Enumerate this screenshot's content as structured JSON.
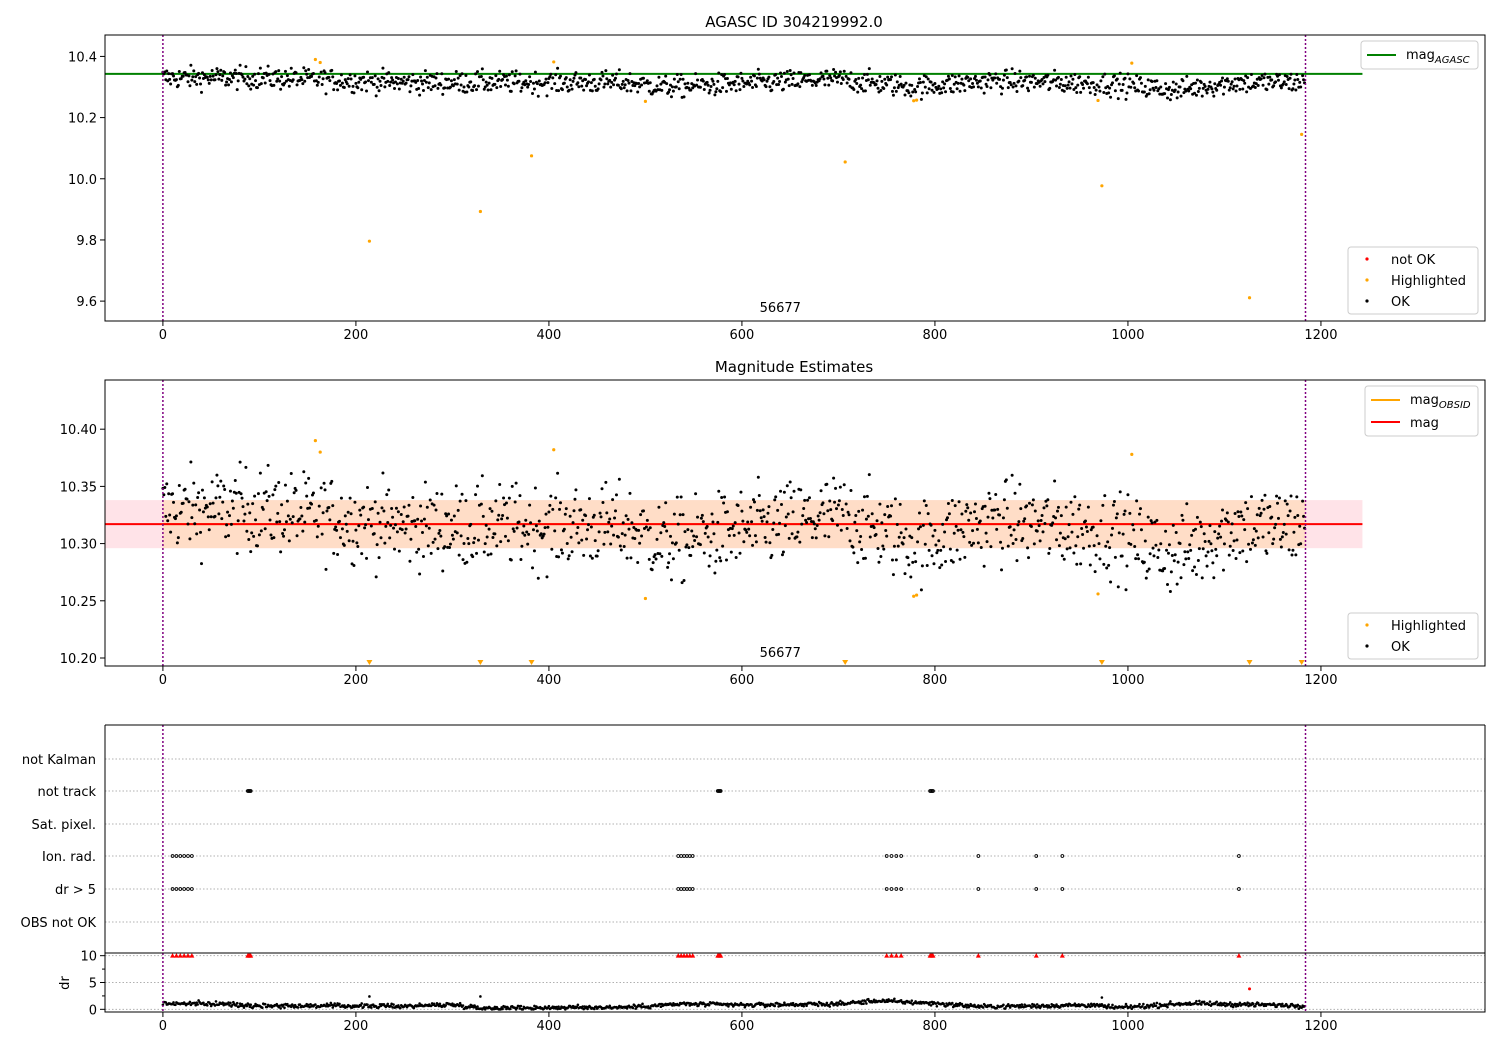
{
  "colors": {
    "ok": "#000000",
    "highlighted": "#ffa500",
    "not_ok": "#ff0000",
    "mag_agasc_line": "#008000",
    "mag_line": "#ff0000",
    "mag_obsid_line": "#ffa500",
    "band_fill": "#ffc0cb",
    "band_obsid_fill": "#ffdab9",
    "vline": "#800080",
    "grid": "#b0b0b0"
  },
  "chart_data": [
    {
      "type": "scatter",
      "title": "AGASC ID 304219992.0",
      "xlim": [
        -60,
        1370
      ],
      "ylim": [
        9.535,
        10.47
      ],
      "xticks": [
        0,
        200,
        400,
        600,
        800,
        1000,
        1200
      ],
      "xtick_labels": [
        "0",
        "200",
        "400",
        "600",
        "800",
        "1000",
        "1200"
      ],
      "yticks": [
        9.6,
        9.8,
        10.0,
        10.2,
        10.4
      ],
      "ytick_labels": [
        "9.6",
        "9.8",
        "10.0",
        "10.2",
        "10.4"
      ],
      "obsid_label": "56677",
      "obsid_label_x": 590,
      "obsid_boundaries": [
        0,
        1184
      ],
      "n_points": 1184,
      "mag_agasc": 10.343,
      "mag_agasc_xrange": [
        -60,
        1243
      ],
      "ok_trend": [
        [
          0,
          10.33
        ],
        [
          100,
          10.33
        ],
        [
          250,
          10.315
        ],
        [
          480,
          10.315
        ],
        [
          520,
          10.3
        ],
        [
          700,
          10.325
        ],
        [
          780,
          10.3
        ],
        [
          860,
          10.32
        ],
        [
          980,
          10.31
        ],
        [
          1050,
          10.29
        ],
        [
          1110,
          10.315
        ],
        [
          1184,
          10.315
        ]
      ],
      "highlighted": [
        [
          158,
          10.39
        ],
        [
          163,
          10.38
        ],
        [
          214,
          9.796
        ],
        [
          329,
          9.893
        ],
        [
          382,
          10.075
        ],
        [
          405,
          10.382
        ],
        [
          500,
          10.253
        ],
        [
          707,
          10.055
        ],
        [
          778,
          10.255
        ],
        [
          781,
          10.257
        ],
        [
          969,
          10.256
        ],
        [
          973,
          9.977
        ],
        [
          1004,
          10.378
        ],
        [
          1126,
          9.611
        ],
        [
          1180,
          10.145
        ]
      ],
      "legend": {
        "line_label": "mag",
        "line_label_sub": "AGASC",
        "points": [
          "not OK",
          "Highlighted",
          "OK"
        ]
      }
    },
    {
      "type": "scatter",
      "title": "Magnitude Estimates",
      "xlim": [
        -60,
        1370
      ],
      "ylim": [
        10.193,
        10.443
      ],
      "xticks": [
        0,
        200,
        400,
        600,
        800,
        1000,
        1200
      ],
      "xtick_labels": [
        "0",
        "200",
        "400",
        "600",
        "800",
        "1000",
        "1200"
      ],
      "yticks": [
        10.2,
        10.25,
        10.3,
        10.35,
        10.4
      ],
      "ytick_labels": [
        "10.20",
        "10.25",
        "10.30",
        "10.35",
        "10.40"
      ],
      "obsid_label": "56677",
      "obsid_label_x": 590,
      "obsid_boundaries": [
        0,
        1184
      ],
      "mag": 10.317,
      "mag_band": [
        10.296,
        10.338
      ],
      "mag_xrange": [
        -60,
        1243
      ],
      "mag_obsid": 10.317,
      "mag_obsid_band": [
        10.296,
        10.338
      ],
      "mag_obsid_xrange": [
        0,
        1184
      ],
      "highlighted": [
        [
          158,
          10.39
        ],
        [
          163,
          10.38
        ],
        [
          405,
          10.382
        ],
        [
          500,
          10.252
        ],
        [
          778,
          10.254
        ],
        [
          781,
          10.255
        ],
        [
          969,
          10.256
        ],
        [
          1004,
          10.378
        ]
      ],
      "below_limit_markers_x": [
        214,
        329,
        382,
        707,
        973,
        1126,
        1180
      ],
      "legend": {
        "line_labels": [
          "mag",
          "mag"
        ],
        "line_label_subs": [
          "OBSID",
          ""
        ],
        "points": [
          "Highlighted",
          "OK"
        ]
      }
    },
    {
      "type": "scatter",
      "title": "",
      "xlim": [
        -60,
        1370
      ],
      "flag_labels": [
        "not Kalman",
        "not track",
        "Sat. pixel.",
        "Ion. rad.",
        "dr > 5",
        "OBS not OK"
      ],
      "flags": {
        "not track": [
          88,
          89,
          90,
          91,
          575,
          576,
          577,
          578,
          795,
          796,
          797,
          798
        ],
        "Ion. rad.": [
          10,
          14,
          18,
          22,
          26,
          30,
          534,
          537,
          540,
          543,
          546,
          549,
          750,
          755,
          760,
          765,
          845,
          905,
          932,
          1115
        ],
        "dr > 5": [
          10,
          14,
          18,
          22,
          26,
          30,
          534,
          537,
          540,
          543,
          546,
          549,
          750,
          755,
          760,
          765,
          845,
          905,
          932,
          1115
        ]
      },
      "obsid_boundaries": [
        0,
        1184
      ]
    },
    {
      "type": "scatter",
      "title": "",
      "ylabel": "dr",
      "xlim": [
        -60,
        1370
      ],
      "ylim": [
        -0.5,
        10.5
      ],
      "xticks": [
        0,
        200,
        400,
        600,
        800,
        1000,
        1200
      ],
      "xtick_labels": [
        "0",
        "200",
        "400",
        "600",
        "800",
        "1000",
        "1200"
      ],
      "yticks": [
        0,
        5,
        10
      ],
      "ytick_labels": [
        "0",
        "5",
        "10"
      ],
      "dr_trend": [
        [
          0,
          1.1
        ],
        [
          60,
          1.0
        ],
        [
          100,
          0.7
        ],
        [
          250,
          0.6
        ],
        [
          300,
          0.9
        ],
        [
          330,
          0.25
        ],
        [
          480,
          0.4
        ],
        [
          540,
          1.0
        ],
        [
          600,
          0.8
        ],
        [
          700,
          1.0
        ],
        [
          740,
          1.6
        ],
        [
          790,
          1.2
        ],
        [
          850,
          0.5
        ],
        [
          960,
          0.8
        ],
        [
          990,
          0.3
        ],
        [
          1060,
          1.1
        ],
        [
          1120,
          0.9
        ],
        [
          1184,
          0.7
        ]
      ],
      "high_dr": [
        [
          10,
          10
        ],
        [
          14,
          10
        ],
        [
          18,
          10
        ],
        [
          22,
          10
        ],
        [
          26,
          10
        ],
        [
          30,
          10
        ],
        [
          88,
          10
        ],
        [
          89,
          10
        ],
        [
          90,
          10
        ],
        [
          91,
          10
        ],
        [
          534,
          10
        ],
        [
          537,
          10
        ],
        [
          540,
          10
        ],
        [
          543,
          10
        ],
        [
          546,
          10
        ],
        [
          549,
          10
        ],
        [
          575,
          10
        ],
        [
          576,
          10
        ],
        [
          577,
          10
        ],
        [
          578,
          10
        ],
        [
          750,
          10
        ],
        [
          755,
          10
        ],
        [
          760,
          10
        ],
        [
          765,
          10
        ],
        [
          795,
          10
        ],
        [
          796,
          10
        ],
        [
          797,
          10
        ],
        [
          798,
          10
        ],
        [
          845,
          10
        ],
        [
          905,
          10
        ],
        [
          932,
          10
        ],
        [
          1115,
          10
        ]
      ],
      "extra_red": [
        [
          1126,
          3.8
        ]
      ],
      "obsid_boundaries": [
        0,
        1184
      ]
    }
  ]
}
